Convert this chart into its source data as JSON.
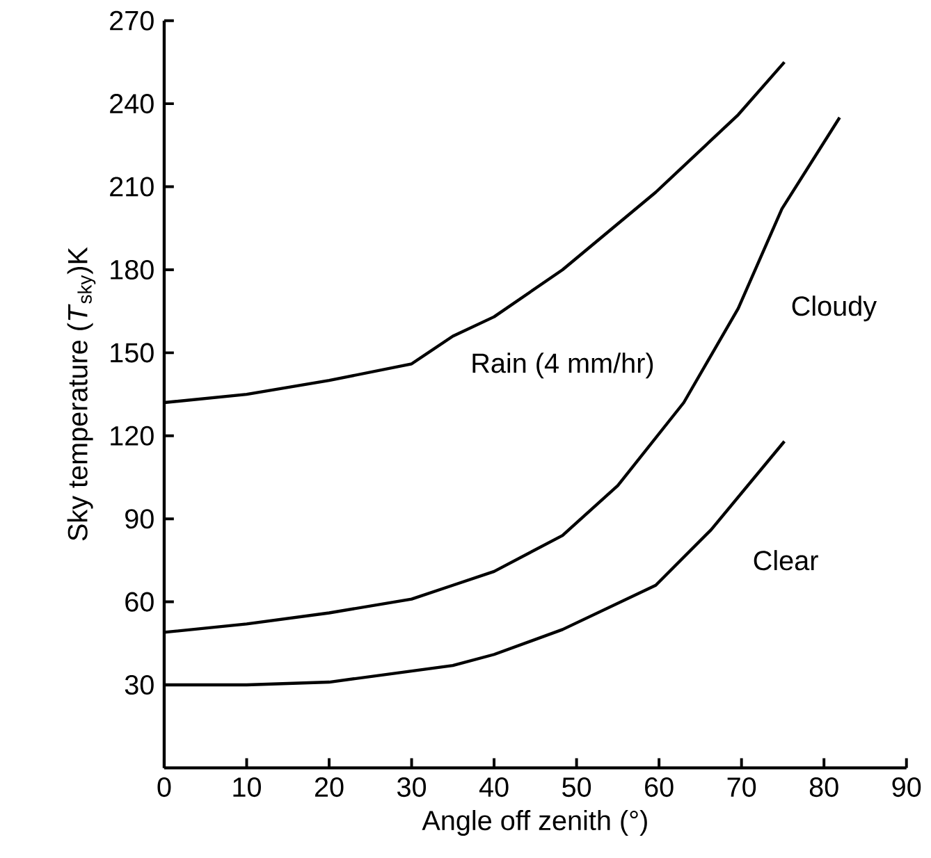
{
  "chart_data": {
    "type": "line",
    "xlabel": "Angle off zenith (°)",
    "ylabel": "Sky temperature (*T*$_{sky}$)K",
    "xlim": [
      0,
      90
    ],
    "ylim": [
      0,
      270
    ],
    "xticks": [
      0,
      10,
      20,
      30,
      40,
      50,
      60,
      70,
      80,
      90
    ],
    "yticks": [
      30,
      60,
      90,
      120,
      150,
      180,
      210,
      240,
      270
    ],
    "marker": "none",
    "line_style": "solid",
    "series": [
      {
        "name": "Rain (4 mm/hr)",
        "color": "#000000",
        "x": [
          0,
          10,
          20,
          30,
          35,
          40,
          48.3,
          59.6,
          69.6,
          75.2
        ],
        "values": [
          132,
          135,
          140,
          146,
          156,
          163,
          180,
          208,
          236,
          255
        ]
      },
      {
        "name": "Cloudy",
        "color": "#000000",
        "x": [
          0,
          10,
          20,
          30,
          35,
          40,
          48.3,
          55,
          63,
          69.6,
          74.9,
          81.9
        ],
        "values": [
          49,
          52,
          56,
          61,
          66,
          71,
          84,
          102,
          132,
          166,
          202,
          235
        ]
      },
      {
        "name": "Clear",
        "color": "#000000",
        "x": [
          0,
          10,
          20,
          30,
          35,
          40,
          48.3,
          59.6,
          66.3,
          75.2
        ],
        "values": [
          30,
          30,
          31,
          35,
          37,
          41,
          50,
          66,
          86,
          118
        ]
      }
    ]
  }
}
